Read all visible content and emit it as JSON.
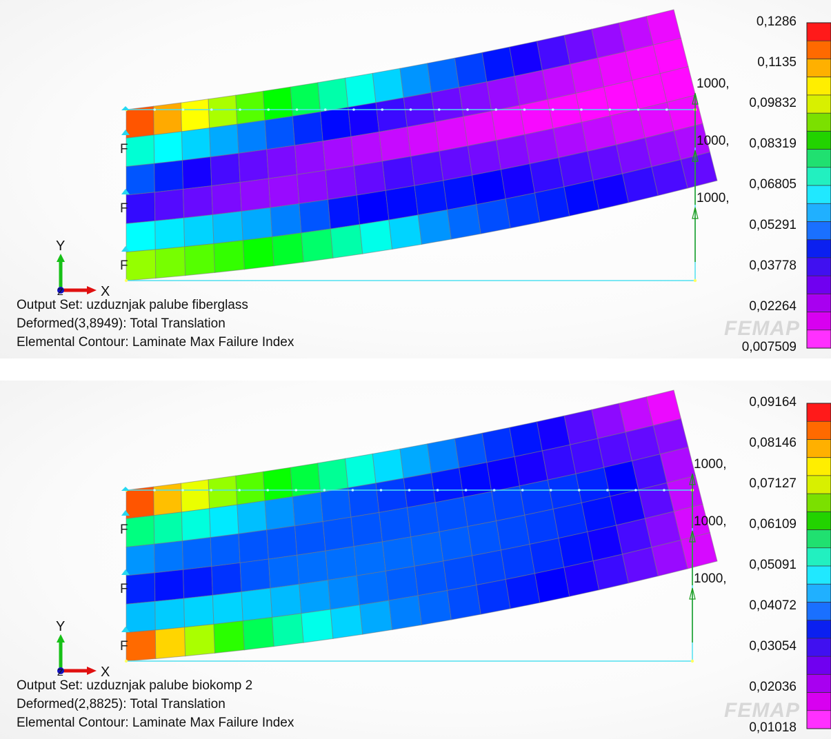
{
  "panels": [
    {
      "id": "top",
      "output_set": "Output Set: uzduznjak palube fiberglass",
      "deformed": "Deformed(3,8949): Total Translation",
      "contour": "Elemental Contour: Laminate Max Failure Index",
      "legend_values": [
        "0,1286",
        "0,1135",
        "0,09832",
        "0,08319",
        "0,06805",
        "0,05291",
        "0,03778",
        "0,02264",
        "0,007509"
      ],
      "load_labels": [
        "1000,",
        "1000,",
        "1000,"
      ],
      "constraint_labels": [
        "F",
        "F",
        "F"
      ],
      "axis": {
        "x": "X",
        "y": "Y",
        "z": "Z"
      },
      "logo": "FEMAP",
      "row_hues": [
        [
          20,
          40,
          60,
          80,
          100,
          120,
          140,
          160,
          175,
          190,
          205,
          215,
          225,
          235,
          245,
          255,
          265,
          275,
          285,
          295
        ],
        [
          170,
          180,
          190,
          200,
          210,
          220,
          230,
          238,
          245,
          252,
          258,
          264,
          270,
          275,
          280,
          285,
          290,
          295,
          298,
          300
        ],
        [
          220,
          232,
          245,
          255,
          262,
          268,
          273,
          278,
          282,
          286,
          289,
          292,
          294,
          296,
          298,
          299,
          300,
          300,
          300,
          300
        ],
        [
          250,
          258,
          263,
          268,
          273,
          275,
          272,
          268,
          262,
          255,
          258,
          262,
          266,
          270,
          275,
          280,
          285,
          290,
          293,
          296
        ],
        [
          180,
          185,
          190,
          195,
          200,
          210,
          220,
          235,
          240,
          238,
          235,
          236,
          240,
          245,
          250,
          256,
          262,
          268,
          274,
          280
        ],
        [
          85,
          92,
          100,
          108,
          118,
          130,
          145,
          160,
          175,
          190,
          205,
          215,
          222,
          228,
          233,
          238,
          244,
          250,
          256,
          262
        ]
      ]
    },
    {
      "id": "bottom",
      "output_set": "Output Set: uzduznjak palube biokomp 2",
      "deformed": "Deformed(2,8825): Total Translation",
      "contour": "Elemental Contour: Laminate Max Failure Index",
      "legend_values": [
        "0,09164",
        "0,08146",
        "0,07127",
        "0,06109",
        "0,05091",
        "0,04072",
        "0,03054",
        "0,02036",
        "0,01018"
      ],
      "load_labels": [
        "1000,",
        "1000,",
        "1000,"
      ],
      "constraint_labels": [
        "F",
        "F",
        "F"
      ],
      "axis": {
        "x": "X",
        "y": "Y",
        "z": "Z"
      },
      "logo": "FEMAP",
      "row_hues": [
        [
          20,
          45,
          65,
          85,
          100,
          118,
          135,
          155,
          172,
          188,
          200,
          210,
          220,
          228,
          235,
          245,
          258,
          272,
          285,
          295
        ],
        [
          150,
          160,
          172,
          185,
          195,
          205,
          212,
          218,
          222,
          226,
          230,
          234,
          238,
          242,
          246,
          250,
          254,
          258,
          262,
          270
        ],
        [
          205,
          212,
          216,
          218,
          220,
          220,
          220,
          220,
          220,
          220,
          220,
          221,
          222,
          224,
          226,
          228,
          232,
          240,
          255,
          280
        ],
        [
          232,
          236,
          234,
          228,
          220,
          215,
          214,
          214,
          214,
          215,
          216,
          218,
          220,
          223,
          226,
          230,
          236,
          245,
          260,
          285
        ],
        [
          195,
          192,
          190,
          190,
          192,
          196,
          202,
          208,
          214,
          218,
          220,
          222,
          224,
          226,
          230,
          236,
          244,
          255,
          270,
          290
        ],
        [
          25,
          50,
          80,
          110,
          140,
          160,
          175,
          190,
          200,
          210,
          216,
          222,
          228,
          234,
          240,
          246,
          252,
          262,
          275,
          290
        ]
      ]
    }
  ]
}
